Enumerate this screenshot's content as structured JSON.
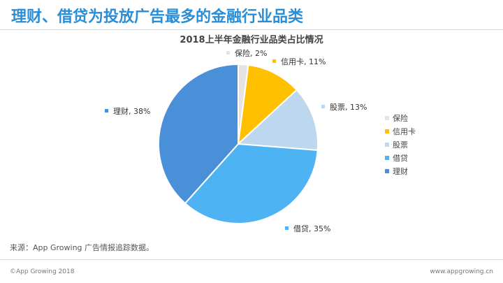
{
  "header": {
    "title": "理财、借贷为投放广告最多的金融行业品类"
  },
  "chart_data": {
    "type": "pie",
    "title": "2018上半年金融行业品类占比情况",
    "categories": [
      "保险",
      "信用卡",
      "股票",
      "借贷",
      "理财"
    ],
    "values": [
      2,
      11,
      13,
      35,
      38
    ],
    "unit": "%",
    "data_labels": [
      "保险, 2%",
      "信用卡, 11%",
      "股票, 13%",
      "借贷, 35%",
      "理财, 38%"
    ],
    "colors": [
      "#e8e3e3",
      "#ffc000",
      "#bdd7ee",
      "#4db3f2",
      "#4a90d9"
    ],
    "legend": {
      "position": "right",
      "entries": [
        "保险",
        "信用卡",
        "股票",
        "借贷",
        "理财"
      ]
    }
  },
  "source_note": "来源：App Growing 广告情报追踪数据。",
  "footer": {
    "left": "©App Growing 2018",
    "right": "www.appgrowing.cn"
  }
}
